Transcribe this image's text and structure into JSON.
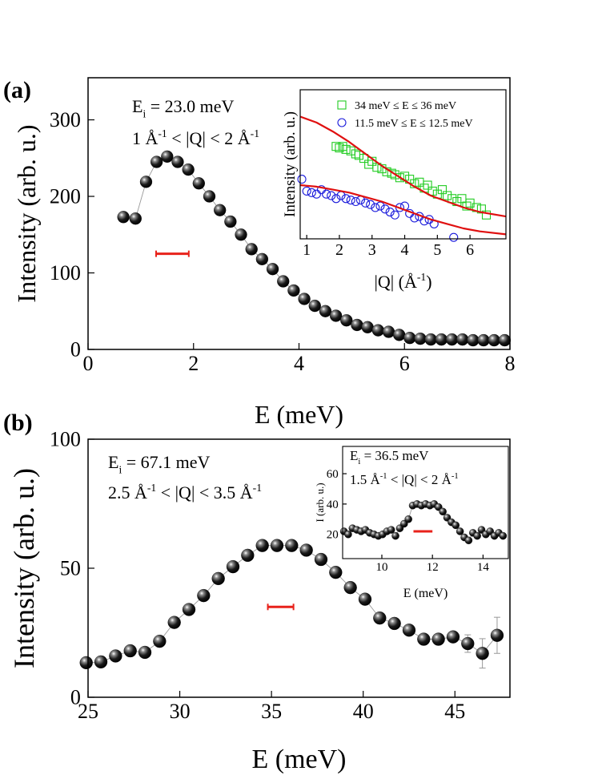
{
  "chart_data": [
    {
      "type": "scatter",
      "panel_label": "(a)",
      "x_label": "E (meV)",
      "y_label": "Intensity (arb. u.)",
      "xlim": [
        0,
        8
      ],
      "ylim": [
        0,
        355
      ],
      "xticks": [
        0,
        2,
        4,
        6,
        8
      ],
      "yticks": [
        0,
        100,
        200,
        300
      ],
      "annotations": [
        [
          {
            "text": "E"
          },
          {
            "text": "i",
            "sub": true
          },
          {
            "text": " = 23.0 meV"
          }
        ],
        [
          {
            "text": "1 Å"
          },
          {
            "text": "-1",
            "sup": true
          },
          {
            "text": " < |Q| < 2 Å"
          },
          {
            "text": "-1",
            "sup": true
          }
        ]
      ],
      "series": [
        {
          "marker": "sphere",
          "color": "#000000",
          "line_color": "#999999",
          "x": [
            0.67,
            0.9,
            1.1,
            1.3,
            1.5,
            1.7,
            1.9,
            2.1,
            2.3,
            2.5,
            2.7,
            2.9,
            3.1,
            3.3,
            3.5,
            3.7,
            3.9,
            4.1,
            4.3,
            4.5,
            4.7,
            4.9,
            5.1,
            5.3,
            5.5,
            5.7,
            5.9,
            6.1,
            6.3,
            6.5,
            6.7,
            6.9,
            7.1,
            7.3,
            7.5,
            7.7,
            7.9
          ],
          "values": [
            173,
            171,
            219,
            245,
            252,
            245,
            235,
            217,
            200,
            182,
            167,
            150,
            131,
            118,
            105,
            89,
            77,
            66,
            57,
            50,
            44,
            38,
            32,
            29,
            25,
            23,
            19,
            15,
            14,
            13,
            13,
            13,
            13,
            12,
            12,
            12,
            12
          ]
        }
      ],
      "resolution": {
        "x": [
          1.29,
          1.91
        ],
        "y": 125,
        "color": "#e8221b"
      }
    },
    {
      "type": "scatter",
      "legend": "upper right",
      "x_label": [
        {
          "text": "|Q| (Å"
        },
        {
          "text": "-1",
          "sup": true
        },
        {
          "text": ")"
        }
      ],
      "y_label": "Intensity (arb. u.)",
      "xlim": [
        0.8,
        7.1
      ],
      "ylim": [
        0,
        1
      ],
      "xticks": [
        1,
        2,
        3,
        4,
        5,
        6
      ],
      "series": [
        {
          "name": "34 meV ≤  E ≤ 36 meV",
          "marker": "square",
          "color": "#22cc22",
          "x": [
            1.9,
            2.0,
            2.1,
            2.2,
            2.35,
            2.5,
            2.6,
            2.75,
            2.9,
            3.0,
            3.15,
            3.3,
            3.45,
            3.6,
            3.7,
            3.85,
            4.0,
            4.15,
            4.3,
            4.45,
            4.6,
            4.7,
            4.85,
            5.0,
            5.15,
            5.3,
            5.45,
            5.6,
            5.75,
            5.9,
            6.0,
            6.2,
            6.35,
            6.5
          ],
          "values": [
            0.62,
            0.61,
            0.62,
            0.6,
            0.59,
            0.57,
            0.56,
            0.54,
            0.5,
            0.52,
            0.48,
            0.47,
            0.45,
            0.44,
            0.43,
            0.41,
            0.42,
            0.4,
            0.37,
            0.38,
            0.34,
            0.36,
            0.32,
            0.3,
            0.33,
            0.29,
            0.27,
            0.25,
            0.27,
            0.22,
            0.24,
            0.21,
            0.2,
            0.16
          ]
        },
        {
          "name": "11.5 meV ≤ E ≤ 12.5 meV",
          "marker": "circle",
          "color": "#1a1adb",
          "x": [
            0.85,
            1.0,
            1.15,
            1.3,
            1.45,
            1.6,
            1.75,
            1.9,
            2.05,
            2.2,
            2.35,
            2.5,
            2.65,
            2.8,
            2.95,
            3.1,
            3.25,
            3.4,
            3.55,
            3.7,
            3.85,
            4.0,
            4.15,
            4.3,
            4.45,
            4.6,
            4.75,
            4.9,
            5.5
          ],
          "values": [
            0.4,
            0.32,
            0.31,
            0.3,
            0.33,
            0.3,
            0.29,
            0.27,
            0.29,
            0.27,
            0.26,
            0.25,
            0.26,
            0.24,
            0.23,
            0.21,
            0.22,
            0.2,
            0.18,
            0.16,
            0.21,
            0.22,
            0.17,
            0.14,
            0.15,
            0.12,
            0.13,
            0.1,
            0.01
          ]
        },
        {
          "marker": "none",
          "line_color": "#e01010",
          "x": [
            0.8,
            1.3,
            1.8,
            2.3,
            2.8,
            3.3,
            3.8,
            4.3,
            4.8,
            5.3,
            5.8,
            6.3,
            7.1
          ],
          "values": [
            0.82,
            0.78,
            0.72,
            0.65,
            0.57,
            0.49,
            0.42,
            0.35,
            0.29,
            0.25,
            0.21,
            0.18,
            0.15
          ]
        },
        {
          "marker": "none",
          "line_color": "#e01010",
          "x": [
            0.8,
            1.3,
            1.8,
            2.3,
            2.8,
            3.3,
            3.8,
            4.3,
            4.8,
            5.3,
            5.8,
            6.3,
            7.1
          ],
          "values": [
            0.36,
            0.35,
            0.33,
            0.31,
            0.28,
            0.25,
            0.21,
            0.17,
            0.13,
            0.1,
            0.07,
            0.05,
            0.03
          ]
        }
      ]
    },
    {
      "type": "scatter",
      "panel_label": "(b)",
      "x_label": "E (meV)",
      "y_label": "Intensity (arb. u.)",
      "xlim": [
        25,
        48
      ],
      "ylim": [
        0,
        100
      ],
      "xticks": [
        25,
        30,
        35,
        40,
        45
      ],
      "yticks": [
        0,
        50,
        100
      ],
      "annotations": [
        [
          {
            "text": "E"
          },
          {
            "text": "i",
            "sub": true
          },
          {
            "text": " = 67.1 meV"
          }
        ],
        [
          {
            "text": "2.5 Å"
          },
          {
            "text": "-1",
            "sup": true
          },
          {
            "text": " < |Q| < 3.5 Å"
          },
          {
            "text": "-1",
            "sup": true
          }
        ]
      ],
      "series": [
        {
          "marker": "sphere",
          "color": "#000000",
          "line_color": "#999999",
          "x": [
            24.9,
            25.7,
            26.5,
            27.3,
            28.1,
            28.9,
            29.7,
            30.5,
            31.3,
            32.1,
            32.9,
            33.7,
            34.5,
            35.3,
            36.1,
            36.9,
            37.7,
            38.5,
            39.3,
            40.1,
            40.9,
            41.7,
            42.5,
            43.3,
            44.1,
            44.9,
            45.7,
            46.5,
            47.3
          ],
          "values": [
            13.4,
            13.7,
            16,
            18,
            17.4,
            21.7,
            29,
            34,
            39.4,
            46,
            50.6,
            55,
            58.8,
            58.8,
            58.8,
            57,
            53.4,
            48.4,
            42.5,
            38,
            30.7,
            28.6,
            26,
            22.5,
            22.5,
            23.4,
            20.8,
            17,
            24
          ],
          "errors": [
            null,
            null,
            null,
            null,
            null,
            null,
            null,
            null,
            null,
            null,
            null,
            null,
            null,
            null,
            null,
            null,
            null,
            null,
            null,
            null,
            null,
            null,
            null,
            null,
            null,
            null,
            3.4,
            5.7,
            7
          ]
        }
      ],
      "resolution": {
        "x": [
          34.8,
          36.2
        ],
        "y": 35,
        "color": "#e8221b"
      }
    },
    {
      "type": "scatter",
      "x_label": "E (meV)",
      "y_label": "I (arb. u.)",
      "xlim": [
        8.45,
        15.0
      ],
      "ylim": [
        4,
        78
      ],
      "xticks": [
        10,
        12,
        14
      ],
      "yticks": [
        20,
        40,
        60
      ],
      "annotations": [
        [
          {
            "text": "E"
          },
          {
            "text": "i",
            "sub": true
          },
          {
            "text": " = 36.5 meV"
          }
        ],
        [
          {
            "text": "1.5 Å"
          },
          {
            "text": "-1",
            "sup": true
          },
          {
            "text": " < |Q| < 2 Å"
          },
          {
            "text": "-1",
            "sup": true
          }
        ]
      ],
      "series": [
        {
          "marker": "sphere",
          "color": "#000000",
          "line_color": "#999999",
          "x": [
            8.5,
            8.67,
            8.84,
            9.01,
            9.18,
            9.35,
            9.52,
            9.69,
            9.86,
            10.03,
            10.2,
            10.37,
            10.54,
            10.71,
            10.88,
            11.05,
            11.22,
            11.39,
            11.56,
            11.73,
            11.9,
            12.07,
            12.24,
            12.41,
            12.58,
            12.75,
            12.92,
            13.09,
            13.26,
            13.43,
            13.6,
            13.77,
            13.94,
            14.11,
            14.28,
            14.45,
            14.62,
            14.79
          ],
          "values": [
            22,
            20,
            24,
            23,
            22,
            23,
            21,
            20,
            19,
            20,
            22,
            23,
            19,
            24,
            27,
            30,
            39,
            40,
            39,
            40,
            39,
            40,
            38,
            35,
            31,
            28,
            26,
            22,
            18,
            16,
            21,
            19,
            23,
            20,
            22,
            19,
            21,
            19
          ]
        }
      ],
      "resolution": {
        "x": [
          11.25,
          12.0
        ],
        "y": 22,
        "color": "#e8221b"
      }
    }
  ]
}
